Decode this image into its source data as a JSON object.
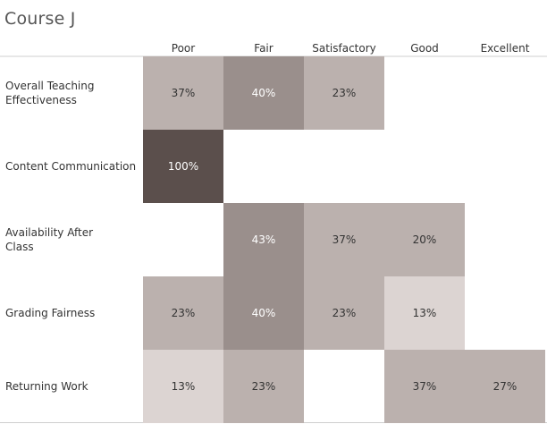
{
  "title": "Course J",
  "chart_data": {
    "type": "heatmap",
    "title": "Course J",
    "columns": [
      "Poor",
      "Fair",
      "Satisfactory",
      "Good",
      "Excellent"
    ],
    "rows": [
      "Overall Teaching Effectiveness",
      "Content Communication",
      "Availability After Class",
      "Grading Fairness",
      "Returning Work"
    ],
    "values": [
      [
        37,
        40,
        23,
        null,
        null
      ],
      [
        100,
        null,
        null,
        null,
        null
      ],
      [
        null,
        43,
        37,
        20,
        null
      ],
      [
        23,
        40,
        23,
        13,
        null
      ],
      [
        13,
        23,
        null,
        37,
        27
      ]
    ],
    "value_suffix": "%",
    "colors": {
      "low": "#dcd4d2",
      "mid": "#bbb1ae",
      "high": "#9a8f8c",
      "max": "#5b4f4c",
      "text_dark": "#333333",
      "text_light": "#ffffff"
    },
    "legend": "none",
    "grid": false
  }
}
